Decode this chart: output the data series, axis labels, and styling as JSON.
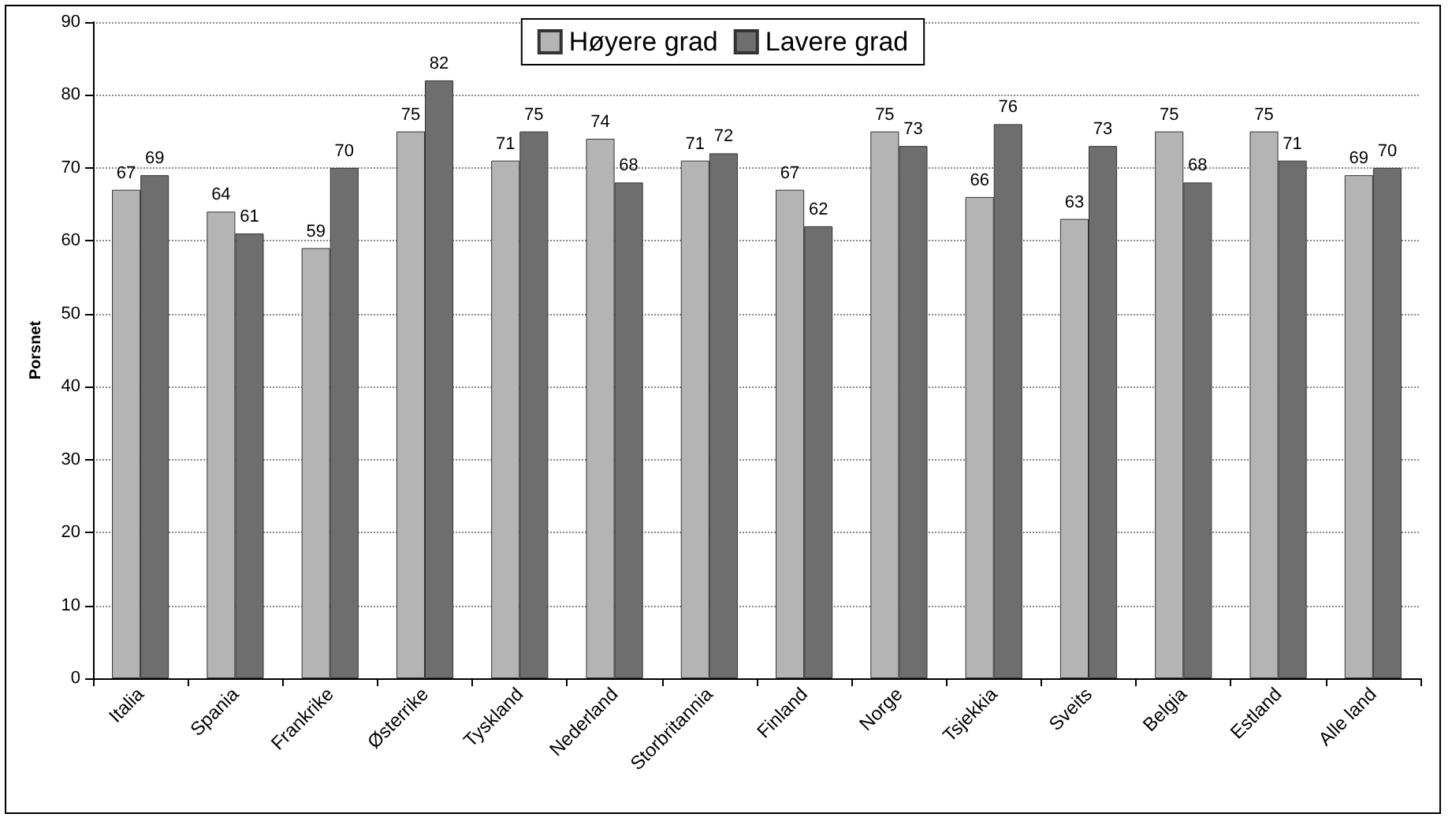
{
  "chart_data": {
    "type": "bar",
    "ylabel": "Porsnet",
    "categories": [
      "Italia",
      "Spania",
      "Frankrike",
      "Østerrike",
      "Tyskland",
      "Nederland",
      "Storbritannia",
      "Finland",
      "Norge",
      "Tsjekkia",
      "Sveits",
      "Belgia",
      "Estland",
      "Alle land"
    ],
    "series": [
      {
        "name": "Høyere grad",
        "color": "#b4b4b4",
        "values": [
          67,
          64,
          59,
          75,
          71,
          74,
          71,
          67,
          75,
          66,
          63,
          75,
          75,
          69
        ]
      },
      {
        "name": "Lavere grad",
        "color": "#6e6e6e",
        "values": [
          69,
          61,
          70,
          82,
          75,
          68,
          72,
          62,
          73,
          76,
          73,
          68,
          71,
          70
        ]
      }
    ],
    "ylim": [
      0,
      90
    ],
    "yticks": [
      0,
      10,
      20,
      30,
      40,
      50,
      60,
      70,
      80,
      90
    ],
    "grid": "y",
    "legend": "top",
    "data_labels": true
  }
}
